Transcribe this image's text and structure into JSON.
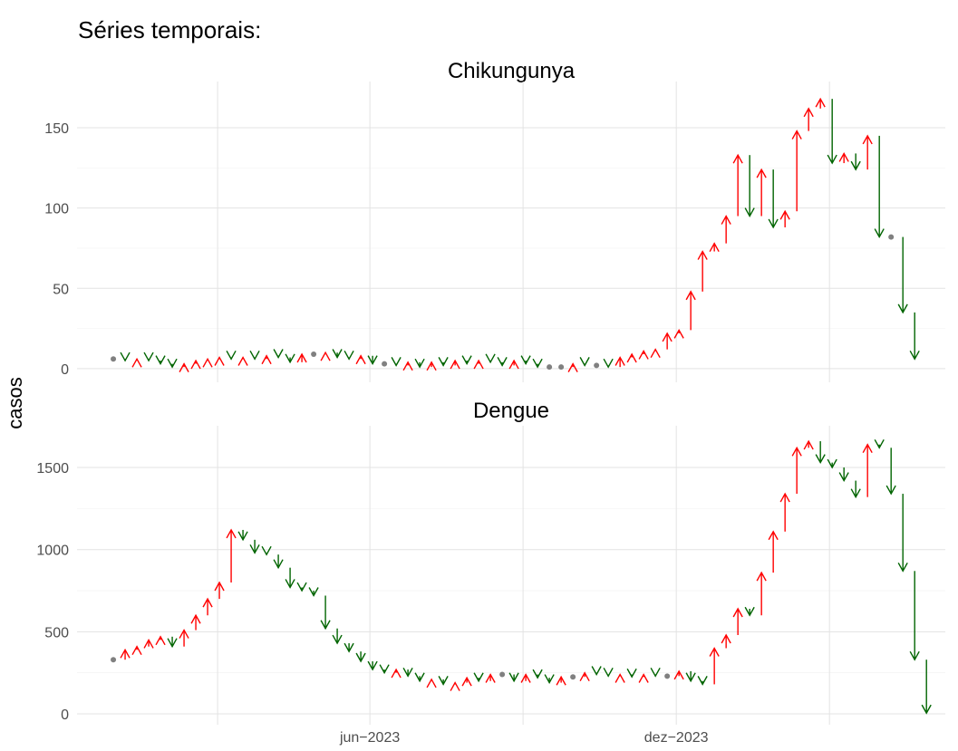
{
  "chart_data": {
    "type": "arrow",
    "title": "Séries temporais:",
    "ylabel": "casos",
    "up_color": "#ff0000",
    "down_color": "#006400",
    "same_color": "#808080",
    "grid": true,
    "x": [
      0,
      1,
      2,
      3,
      4,
      5,
      6,
      7,
      8,
      9,
      10,
      11,
      12,
      13,
      14,
      15,
      16,
      17,
      18,
      19,
      20,
      21,
      22,
      23,
      24,
      25,
      26,
      27,
      28,
      29,
      30,
      31,
      32,
      33,
      34,
      35,
      36,
      37,
      38,
      39,
      40,
      41,
      42,
      43,
      44,
      45,
      46,
      47,
      48,
      49,
      50,
      51,
      52,
      53,
      54,
      55,
      56,
      57,
      58,
      59,
      60,
      61,
      62,
      63,
      64,
      65,
      66,
      67,
      68,
      69
    ],
    "xlim": [
      -3.08,
      70.6
    ],
    "xticks": [
      {
        "value": 21.77,
        "label": "jun−2023"
      },
      {
        "value": 47.77,
        "label": "dez−2023"
      }
    ],
    "xminor": [
      8.85,
      34.77,
      60.77
    ],
    "panels": [
      {
        "title": "Chikungunya",
        "ylim": [
          -8.5,
          178.8
        ],
        "yticks": [
          0,
          50,
          100,
          150
        ],
        "values": [
          6,
          5,
          6,
          5,
          3,
          1,
          3,
          5,
          6,
          7,
          6,
          7,
          6,
          8,
          7,
          4,
          9,
          9,
          10,
          7,
          6,
          8,
          3,
          3,
          2,
          4,
          1,
          4,
          2,
          5,
          3,
          5,
          4,
          2,
          5,
          3,
          1,
          1,
          1,
          3,
          2,
          2,
          1,
          7,
          9,
          11,
          12,
          22,
          24,
          48,
          73,
          78,
          95,
          133,
          95,
          124,
          88,
          98,
          148,
          162,
          168,
          128,
          134,
          124,
          145,
          82,
          82,
          35,
          6,
          null
        ]
      },
      {
        "title": "Dengue",
        "ylim": [
          -66,
          1754
        ],
        "yticks": [
          0,
          500,
          1000,
          1500
        ],
        "values": [
          330,
          390,
          410,
          450,
          470,
          410,
          510,
          600,
          700,
          800,
          1120,
          1060,
          980,
          970,
          890,
          770,
          750,
          720,
          520,
          430,
          380,
          320,
          270,
          250,
          270,
          230,
          200,
          210,
          180,
          190,
          220,
          200,
          240,
          240,
          200,
          240,
          220,
          190,
          225,
          225,
          250,
          240,
          230,
          240,
          225,
          240,
          230,
          230,
          260,
          200,
          180,
          400,
          480,
          640,
          600,
          860,
          1110,
          1340,
          1620,
          1660,
          1530,
          1500,
          1420,
          1320,
          1640,
          1620,
          1340,
          870,
          330,
          5
        ]
      }
    ]
  }
}
